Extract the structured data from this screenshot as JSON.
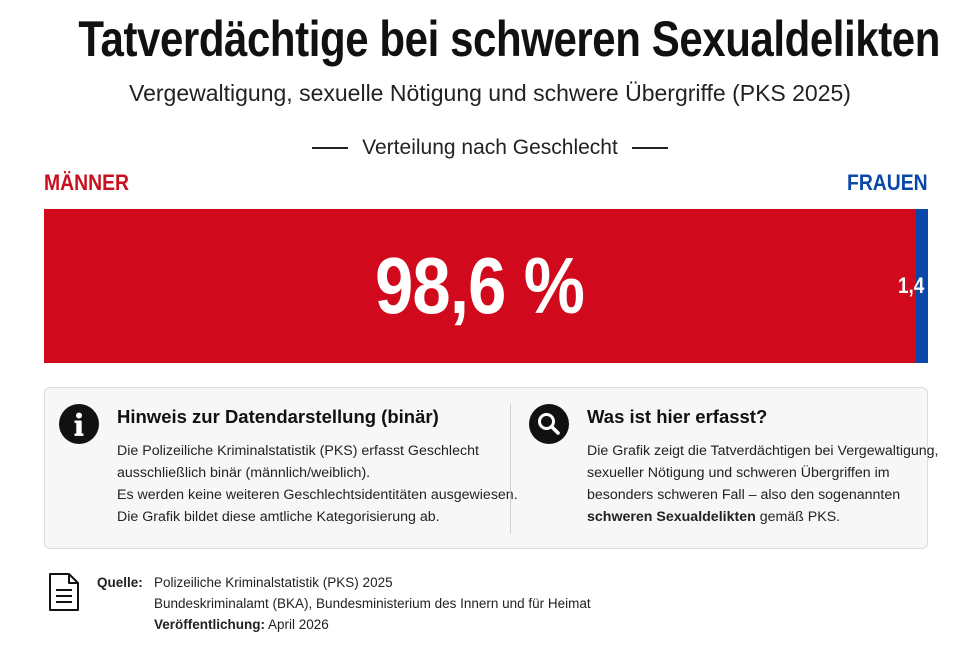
{
  "title": "Tatverdächtige bei schweren Sexualdelikten",
  "subtitle": "Vergewaltigung, sexuelle Nötigung und schwere Übergriffe (PKS 2025)",
  "section_heading": "Verteilung nach Geschlecht",
  "colors": {
    "male": "#d0091c",
    "female": "#0b47a8",
    "male_label": "#c8101e"
  },
  "chart_data": {
    "type": "bar",
    "orientation": "horizontal-stacked",
    "categories": [
      "MÄNNER",
      "FRAUEN"
    ],
    "values": [
      98.6,
      1.4
    ],
    "value_labels": [
      "98,6 %",
      "1,4 %"
    ],
    "unit": "%",
    "title": "Verteilung nach Geschlecht"
  },
  "info_left": {
    "icon": "info-icon",
    "heading": "Hinweis zur Datendarstellung (binär)",
    "lines": [
      "Die Polizeiliche Kriminalstatistik (PKS) erfasst Geschlecht",
      "ausschließlich binär (männlich/weiblich).",
      "Es werden keine weiteren Geschlechtsidentitäten ausgewiesen.",
      "Die Grafik bildet diese amtliche Kategorisierung ab."
    ]
  },
  "info_right": {
    "icon": "search-icon",
    "heading": "Was ist hier erfasst?",
    "lines": [
      "Die Grafik zeigt die Tatverdächtigen bei Vergewaltigung,",
      "sexueller Nötigung und schweren Übergriffen im",
      "besonders schweren Fall – also den sogenannten"
    ],
    "last_line_bold": "schweren Sexualdelikten",
    "last_line_rest": " gemäß PKS."
  },
  "source": {
    "icon": "document-icon",
    "label": "Quelle:",
    "line1": "Polizeiliche Kriminalstatistik (PKS) 2025",
    "line2": "Bundeskriminalamt (BKA), Bundesministerium des Innern und für Heimat",
    "published_label": "Veröffentlichung:",
    "published_value": " April 2026"
  }
}
